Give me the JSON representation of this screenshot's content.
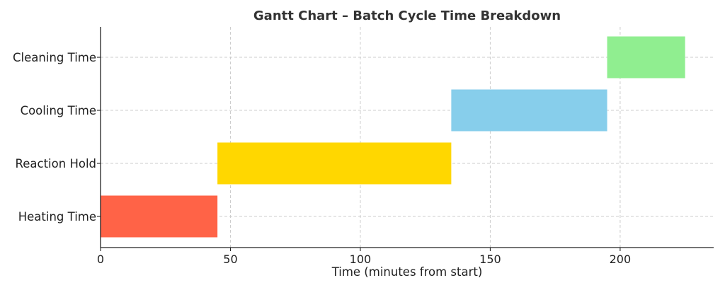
{
  "chart_data": {
    "type": "gantt",
    "title": "Gantt Chart – Batch Cycle Time Breakdown",
    "xlabel": "Time (minutes from start)",
    "ylabel": "",
    "xlim": [
      0,
      236
    ],
    "xticks": [
      0,
      50,
      100,
      150,
      200
    ],
    "grid": true,
    "tasks": [
      {
        "name": "Heating Time",
        "start": 0,
        "duration": 45,
        "color": "#FF6347"
      },
      {
        "name": "Reaction Hold",
        "start": 45,
        "duration": 90,
        "color": "#FFD700"
      },
      {
        "name": "Cooling Time",
        "start": 135,
        "duration": 60,
        "color": "#87CEEB"
      },
      {
        "name": "Cleaning Time",
        "start": 195,
        "duration": 30,
        "color": "#90EE90"
      }
    ]
  }
}
